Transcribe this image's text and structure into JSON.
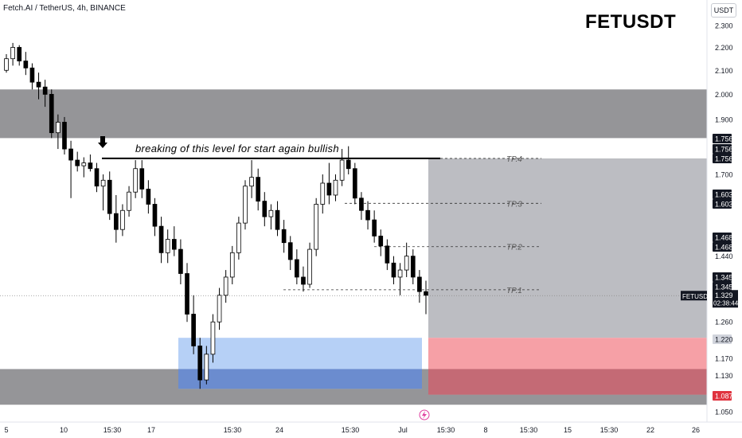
{
  "header": {
    "title": "Fetch.AI / TetherUS, 4h, BINANCE",
    "symbol_big": "FETUSDT",
    "currency_button": "USDT"
  },
  "annotation": "breaking of this level for start again bullish",
  "colors": {
    "up": "#000000",
    "down": "#000000",
    "zone_gray": "#8f8f92",
    "zone_blue": "#a9c8f5",
    "target_gray": "#bcbdc2",
    "stop_red": "#f6a0a6",
    "blend": "#6b8ccf"
  },
  "chart_data": {
    "type": "candlestick",
    "symbol": "FETUSDT",
    "interval": "4h",
    "exchange": "BINANCE",
    "y_axis": {
      "ticks": [
        "2.300",
        "2.200",
        "2.100",
        "2.000",
        "1.900",
        "1.700",
        "1.440",
        "1.260",
        "1.170",
        "1.130",
        "1.050"
      ],
      "range": [
        1.05,
        2.3
      ],
      "scale": "log"
    },
    "x_axis": {
      "ticks": [
        "5",
        "10",
        "15:30",
        "17",
        "15:30",
        "24",
        "15:30",
        "Jul",
        "15:30",
        "8",
        "15:30",
        "15",
        "15:30",
        "22",
        "26"
      ]
    },
    "last_price": {
      "label": "FETUSDT",
      "value": "1.329",
      "countdown": "02:38:44"
    },
    "price_labels": [
      {
        "value": "1.756",
        "style": "dark"
      },
      {
        "value": "1.756",
        "style": "dark"
      },
      {
        "value": "1.756",
        "style": "dark"
      },
      {
        "value": "1.603",
        "style": "dark"
      },
      {
        "value": "1.603",
        "style": "dark"
      },
      {
        "value": "1.468",
        "style": "dark"
      },
      {
        "value": "1.468",
        "style": "dark"
      },
      {
        "value": "1.345",
        "style": "dark"
      },
      {
        "value": "1.345",
        "style": "dark"
      },
      {
        "value": "1.220",
        "style": "light"
      },
      {
        "value": "1.087",
        "style": "red"
      }
    ],
    "targets": [
      {
        "name": "TP.4",
        "value": 1.756
      },
      {
        "name": "TP.3",
        "value": 1.603
      },
      {
        "name": "TP.2",
        "value": 1.468
      },
      {
        "name": "TP.1",
        "value": 1.345
      }
    ],
    "zones": [
      {
        "kind": "resistance",
        "top": 2.02,
        "bottom": 1.83
      },
      {
        "kind": "support",
        "top": 1.145,
        "bottom": 1.065
      },
      {
        "kind": "demand",
        "top": 1.22,
        "bottom": 1.1
      },
      {
        "kind": "target",
        "top": 1.756,
        "bottom": 1.22
      },
      {
        "kind": "stop",
        "top": 1.22,
        "bottom": 1.087
      }
    ],
    "breakout_level": 1.756,
    "candles": [
      [
        2.1,
        2.17,
        2.09,
        2.15
      ],
      [
        2.15,
        2.22,
        2.12,
        2.2
      ],
      [
        2.2,
        2.21,
        2.12,
        2.14
      ],
      [
        2.14,
        2.18,
        2.08,
        2.11
      ],
      [
        2.11,
        2.13,
        2.02,
        2.05
      ],
      [
        2.05,
        2.09,
        1.98,
        2.03
      ],
      [
        2.03,
        2.06,
        1.95,
        2.0
      ],
      [
        2.0,
        2.02,
        1.83,
        1.85
      ],
      [
        1.85,
        1.92,
        1.79,
        1.89
      ],
      [
        1.89,
        1.91,
        1.77,
        1.79
      ],
      [
        1.79,
        1.82,
        1.62,
        1.75
      ],
      [
        1.75,
        1.78,
        1.71,
        1.73
      ],
      [
        1.73,
        1.76,
        1.69,
        1.74
      ],
      [
        1.74,
        1.77,
        1.71,
        1.72
      ],
      [
        1.72,
        1.74,
        1.64,
        1.66
      ],
      [
        1.66,
        1.7,
        1.58,
        1.68
      ],
      [
        1.68,
        1.71,
        1.55,
        1.57
      ],
      [
        1.57,
        1.63,
        1.48,
        1.52
      ],
      [
        1.52,
        1.6,
        1.5,
        1.58
      ],
      [
        1.58,
        1.66,
        1.56,
        1.64
      ],
      [
        1.64,
        1.75,
        1.62,
        1.72
      ],
      [
        1.72,
        1.75,
        1.62,
        1.65
      ],
      [
        1.65,
        1.68,
        1.57,
        1.6
      ],
      [
        1.6,
        1.62,
        1.5,
        1.53
      ],
      [
        1.53,
        1.56,
        1.42,
        1.45
      ],
      [
        1.45,
        1.52,
        1.42,
        1.49
      ],
      [
        1.49,
        1.53,
        1.44,
        1.46
      ],
      [
        1.46,
        1.49,
        1.36,
        1.39
      ],
      [
        1.39,
        1.42,
        1.26,
        1.28
      ],
      [
        1.28,
        1.33,
        1.18,
        1.2
      ],
      [
        1.2,
        1.22,
        1.1,
        1.12
      ],
      [
        1.12,
        1.2,
        1.11,
        1.18
      ],
      [
        1.18,
        1.28,
        1.16,
        1.26
      ],
      [
        1.26,
        1.35,
        1.24,
        1.33
      ],
      [
        1.33,
        1.4,
        1.31,
        1.38
      ],
      [
        1.38,
        1.47,
        1.36,
        1.45
      ],
      [
        1.45,
        1.56,
        1.43,
        1.54
      ],
      [
        1.54,
        1.68,
        1.52,
        1.66
      ],
      [
        1.66,
        1.75,
        1.62,
        1.69
      ],
      [
        1.69,
        1.72,
        1.58,
        1.61
      ],
      [
        1.61,
        1.64,
        1.53,
        1.56
      ],
      [
        1.56,
        1.6,
        1.52,
        1.58
      ],
      [
        1.58,
        1.61,
        1.5,
        1.52
      ],
      [
        1.52,
        1.55,
        1.45,
        1.48
      ],
      [
        1.48,
        1.5,
        1.4,
        1.43
      ],
      [
        1.43,
        1.46,
        1.36,
        1.38
      ],
      [
        1.38,
        1.41,
        1.34,
        1.36
      ],
      [
        1.36,
        1.48,
        1.35,
        1.46
      ],
      [
        1.46,
        1.62,
        1.44,
        1.6
      ],
      [
        1.6,
        1.7,
        1.57,
        1.67
      ],
      [
        1.67,
        1.74,
        1.6,
        1.63
      ],
      [
        1.63,
        1.7,
        1.61,
        1.68
      ],
      [
        1.68,
        1.79,
        1.66,
        1.75
      ],
      [
        1.75,
        1.8,
        1.7,
        1.72
      ],
      [
        1.72,
        1.74,
        1.6,
        1.62
      ],
      [
        1.62,
        1.64,
        1.55,
        1.58
      ],
      [
        1.58,
        1.61,
        1.52,
        1.55
      ],
      [
        1.55,
        1.58,
        1.48,
        1.5
      ],
      [
        1.5,
        1.52,
        1.44,
        1.47
      ],
      [
        1.47,
        1.49,
        1.4,
        1.42
      ],
      [
        1.42,
        1.44,
        1.36,
        1.38
      ],
      [
        1.38,
        1.42,
        1.33,
        1.4
      ],
      [
        1.4,
        1.48,
        1.38,
        1.44
      ],
      [
        1.44,
        1.46,
        1.36,
        1.38
      ],
      [
        1.38,
        1.4,
        1.31,
        1.34
      ],
      [
        1.34,
        1.37,
        1.28,
        1.33
      ]
    ]
  }
}
